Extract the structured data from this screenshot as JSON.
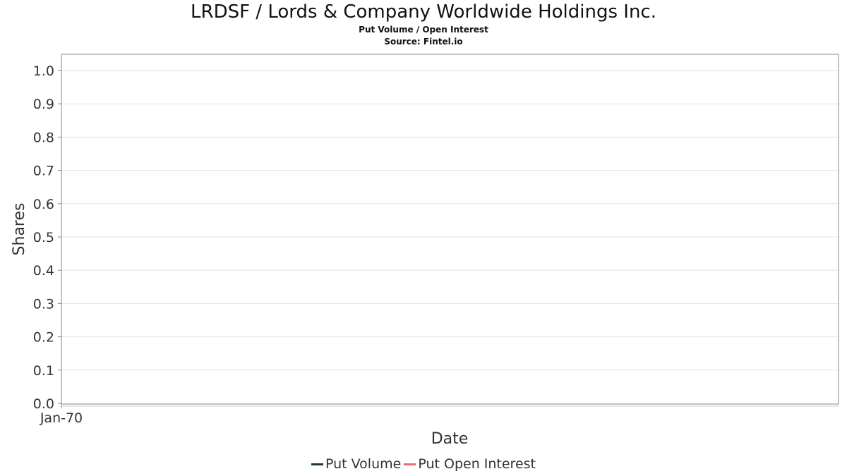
{
  "chart_data": {
    "type": "line",
    "title": "LRDSF / Lords & Company Worldwide Holdings Inc.",
    "subtitles": [
      "Put Volume / Open Interest",
      "Source: Fintel.io"
    ],
    "xlabel": "Date",
    "ylabel": "Shares",
    "x_tick_labels": [
      "Jan-70"
    ],
    "y_tick_labels": [
      "0.0",
      "0.1",
      "0.2",
      "0.3",
      "0.4",
      "0.5",
      "0.6",
      "0.7",
      "0.8",
      "0.9",
      "1.0"
    ],
    "ylim": [
      0,
      1.05
    ],
    "grid": true,
    "legend_position": "bottom-center",
    "series": [
      {
        "name": "Put Volume",
        "color": "#1b3d26",
        "values": []
      },
      {
        "name": "Put Open Interest",
        "color": "#f26a6a",
        "values": []
      }
    ]
  }
}
